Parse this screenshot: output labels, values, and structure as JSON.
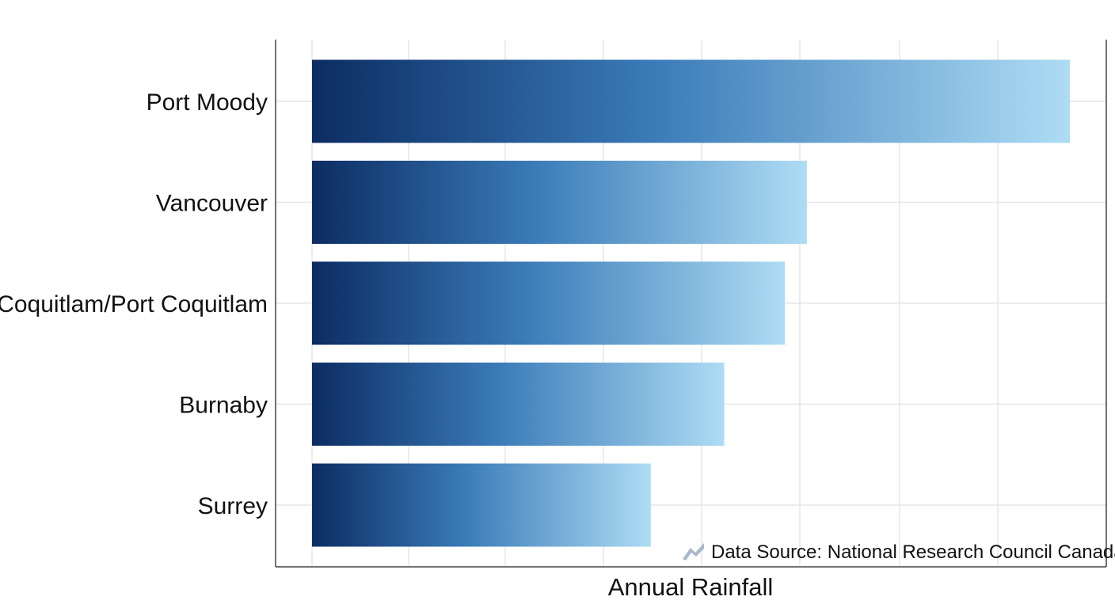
{
  "chart_data": {
    "type": "bar",
    "orientation": "horizontal",
    "categories": [
      "Port Moody",
      "Vancouver",
      "Coquitlam/Port Coquitlam",
      "Burnaby",
      "Surrey"
    ],
    "values": [
      100,
      65.3,
      62.4,
      54.4,
      44.7
    ],
    "title": "",
    "xlabel": "Annual Rainfall",
    "ylabel": "",
    "xlim": [
      0,
      105
    ],
    "grid": true,
    "tick_labels_shown": false,
    "annotation": {
      "text": "Data Source: National Research Council Canada",
      "icon": "trend-icon"
    },
    "colors": {
      "bar_dark": "#0c2c63",
      "bar_mid": "#3a7bb8",
      "bar_light": "#aedcf4",
      "grid": "#e6e6e6",
      "axis": "#444444",
      "source_icon": "#a9b8cc"
    }
  }
}
